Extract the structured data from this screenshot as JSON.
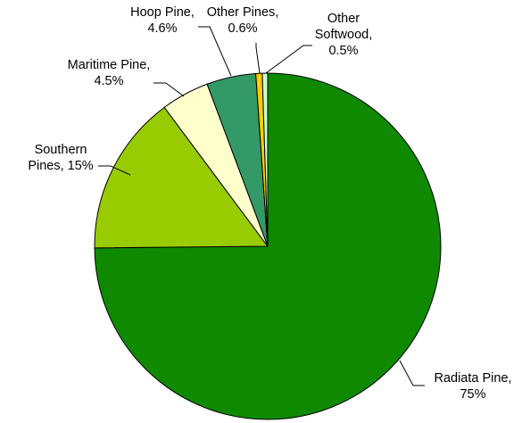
{
  "chart_data": {
    "type": "pie",
    "title": "",
    "start": "12 o'clock",
    "direction": "clockwise",
    "slices": [
      {
        "name": "Radiata Pine",
        "value": 75,
        "color": "#0f8a00",
        "label": [
          "Radiata Pine,",
          "75%"
        ]
      },
      {
        "name": "Southern Pines",
        "value": 15,
        "color": "#99cc00",
        "label": [
          "Southern",
          "Pines, 15%"
        ]
      },
      {
        "name": "Maritime Pine",
        "value": 4.5,
        "color": "#ffffcc",
        "label": [
          "Maritime Pine,",
          "4.5%"
        ]
      },
      {
        "name": "Hoop Pine",
        "value": 4.6,
        "color": "#339966",
        "label": [
          "Hoop Pine,",
          "4.6%"
        ]
      },
      {
        "name": "Other Pines",
        "value": 0.6,
        "color": "#ffcc00",
        "label": [
          "Other Pines,",
          "0.6%"
        ]
      },
      {
        "name": "Other Softwood",
        "value": 0.5,
        "color": "#ccffcc",
        "label": [
          "Other",
          "Softwood,",
          "0.5%"
        ]
      }
    ]
  }
}
